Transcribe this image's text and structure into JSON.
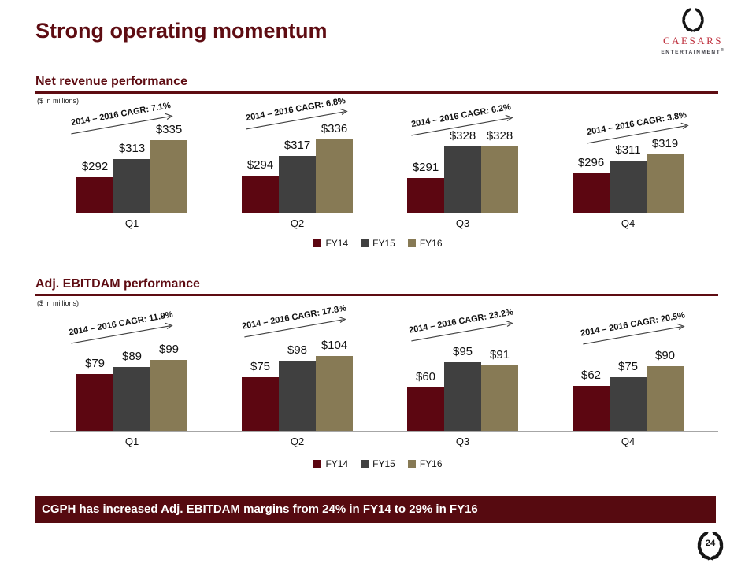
{
  "slide": {
    "title": "Strong operating momentum",
    "banner_text": "CGPH has increased Adj. EBITDAM margins from 24% in FY14 to 29% in FY16",
    "page_number": "24"
  },
  "logo": {
    "brand": "CAESARS",
    "sub": "ENTERTAINMENT",
    "trademark": "®"
  },
  "colors": {
    "maroon_heading": "#5e0c12",
    "banner_background": "#560a10",
    "fy14": "#5c0611",
    "fy15": "#404040",
    "fy16": "#877a55",
    "axis_line": "#a6a6a6",
    "logo_red": "#be2f3c"
  },
  "chart_data": [
    {
      "type": "bar",
      "title": "Net revenue performance",
      "units_label": "($ in millions)",
      "categories": [
        "Q1",
        "Q2",
        "Q3",
        "Q4"
      ],
      "series": [
        {
          "name": "FY14",
          "color": "#5c0611",
          "values": [
            292,
            294,
            291,
            296
          ]
        },
        {
          "name": "FY15",
          "color": "#404040",
          "values": [
            313,
            317,
            328,
            311
          ]
        },
        {
          "name": "FY16",
          "color": "#877a55",
          "values": [
            335,
            336,
            328,
            319
          ]
        }
      ],
      "data_label_prefix": "$",
      "annotations": [
        "2014 – 2016 CAGR: 7.1%",
        "2014 – 2016 CAGR: 6.8%",
        "2014 – 2016 CAGR: 6.2%",
        "2014 – 2016 CAGR: 3.8%"
      ],
      "ylim": [
        250,
        340
      ],
      "grid": false,
      "legend_position": "bottom"
    },
    {
      "type": "bar",
      "title": "Adj. EBITDAM performance",
      "units_label": "($ in millions)",
      "categories": [
        "Q1",
        "Q2",
        "Q3",
        "Q4"
      ],
      "series": [
        {
          "name": "FY14",
          "color": "#5c0611",
          "values": [
            79,
            75,
            60,
            62
          ]
        },
        {
          "name": "FY15",
          "color": "#404040",
          "values": [
            89,
            98,
            95,
            75
          ]
        },
        {
          "name": "FY16",
          "color": "#877a55",
          "values": [
            99,
            104,
            91,
            90
          ]
        }
      ],
      "data_label_prefix": "$",
      "annotations": [
        "2014 – 2016 CAGR: 11.9%",
        "2014 – 2016 CAGR: 17.8%",
        "2014 – 2016 CAGR: 23.2%",
        "2014 – 2016 CAGR: 20.5%"
      ],
      "ylim": [
        0,
        115
      ],
      "grid": false,
      "legend_position": "bottom"
    }
  ]
}
